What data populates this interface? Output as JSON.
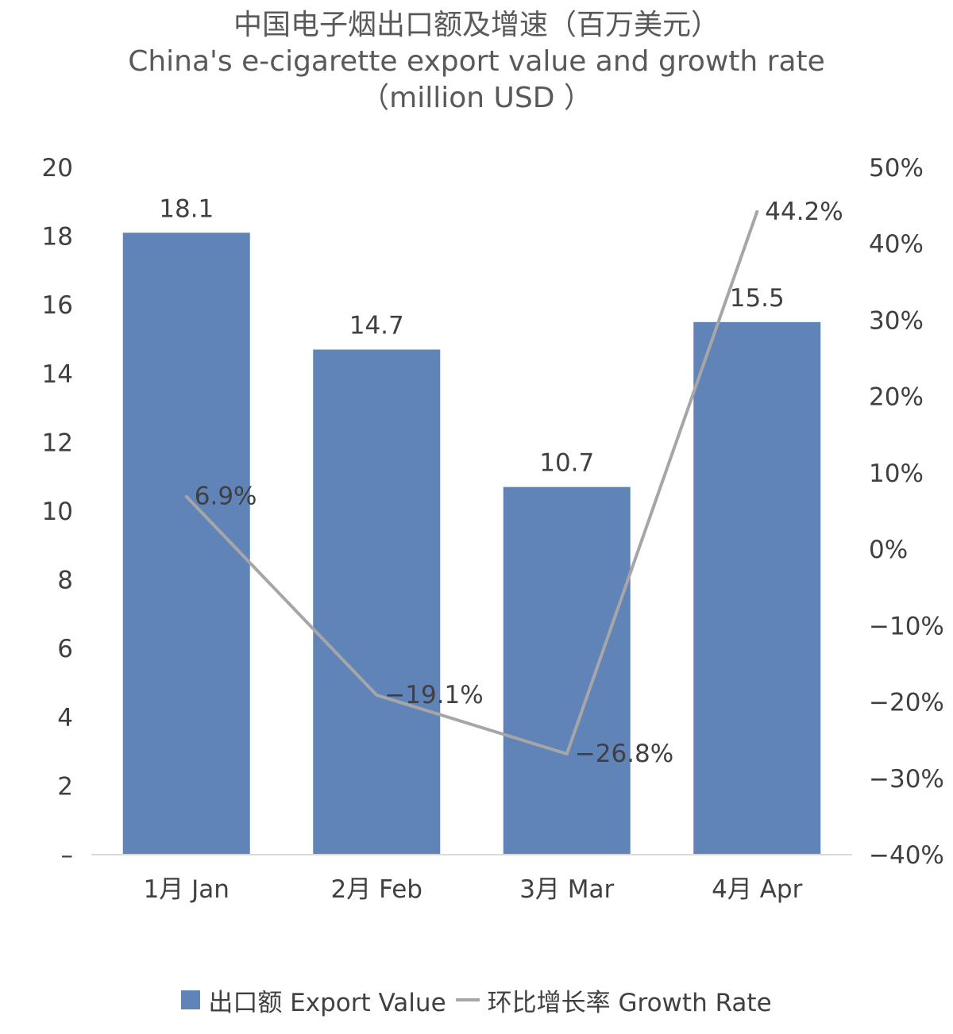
{
  "title": {
    "line1": "中国电子烟出口额及增速（百万美元）",
    "line2": "China's e-cigarette export value and growth rate",
    "line3": "（million USD ）"
  },
  "legend": {
    "bar_label": "出口额 Export Value",
    "line_label": "环比增长率 Growth Rate"
  },
  "colors": {
    "bar": "#6184b8",
    "line": "#a6a6a6",
    "axis": "#d9d9d9",
    "text": "#404040"
  },
  "chart_data": {
    "type": "bar",
    "categories": [
      "1月 Jan",
      "2月 Feb",
      "3月 Mar",
      "4月 Apr"
    ],
    "series": [
      {
        "name": "出口额 Export Value",
        "type": "bar",
        "axis": "left",
        "values": [
          18.1,
          14.7,
          10.7,
          15.5
        ],
        "labels": [
          "18.1",
          "14.7",
          "10.7",
          "15.5"
        ]
      },
      {
        "name": "环比增长率 Growth Rate",
        "type": "line",
        "axis": "right",
        "values": [
          6.9,
          -19.1,
          -26.8,
          44.2
        ],
        "labels": [
          "6.9%",
          "−19.1%",
          "−26.8%",
          "44.2%"
        ]
      }
    ],
    "y_left": {
      "min": 0,
      "max": 20,
      "ticks": [
        "–",
        "2",
        "4",
        "6",
        "8",
        "10",
        "12",
        "14",
        "16",
        "18",
        "20"
      ]
    },
    "y_right": {
      "min": -40,
      "max": 50,
      "ticks": [
        "−40%",
        "−30%",
        "−20%",
        "−10%",
        "0%",
        "10%",
        "20%",
        "30%",
        "40%",
        "50%"
      ]
    },
    "grid": false,
    "legend_position": "bottom"
  }
}
